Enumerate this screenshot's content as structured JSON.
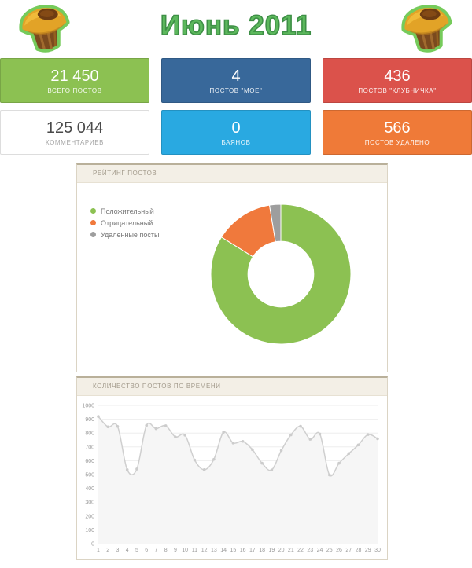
{
  "header": {
    "title": "Июнь 2011"
  },
  "stats": {
    "cards": [
      {
        "value": "21 450",
        "label": "ВСЕГО ПОСТОВ",
        "bg": "#8CC152",
        "fg": "#FFFFFF"
      },
      {
        "value": "4",
        "label": "ПОСТОВ \"МОЕ\"",
        "bg": "#38689A",
        "fg": "#FFFFFF"
      },
      {
        "value": "436",
        "label": "ПОСТОВ \"КЛУБНИЧКА\"",
        "bg": "#DB524B",
        "fg": "#FFFFFF"
      },
      {
        "value": "125 044",
        "label": "КОММЕНТАРИЕВ",
        "bg": "#FFFFFF",
        "fg": "#4A4A4A",
        "label_color": "#9E9E9E",
        "border": "#DDDDDD"
      },
      {
        "value": "0",
        "label": "БАЯНОВ",
        "bg": "#29A9E1",
        "fg": "#FFFFFF"
      },
      {
        "value": "566",
        "label": "ПОСТОВ УДАЛЕНО",
        "bg": "#EF7A38",
        "fg": "#FFFFFF"
      }
    ]
  },
  "icons": {
    "muffin": "muffin-icon"
  },
  "chart_data": [
    {
      "type": "pie",
      "title": "РЕЙТИНГ ПОСТОВ",
      "labels": [
        "Положительный",
        "Отрицательный",
        "Удаленные посты"
      ],
      "values": [
        83.9,
        13.5,
        2.6
      ],
      "unit": "percent",
      "colors": [
        "#8CC152",
        "#F0793C",
        "#9E9E9E"
      ],
      "donut_hole_ratio": 0.47,
      "legend_position": "left"
    },
    {
      "type": "line",
      "title": "КОЛИЧЕСТВО ПОСТОВ ПО ВРЕМЕНИ",
      "x": [
        1,
        2,
        3,
        4,
        5,
        6,
        7,
        8,
        9,
        10,
        11,
        12,
        13,
        14,
        15,
        16,
        17,
        18,
        19,
        20,
        21,
        22,
        23,
        24,
        25,
        26,
        27,
        28,
        29,
        30
      ],
      "values": [
        920,
        845,
        848,
        535,
        540,
        855,
        832,
        853,
        772,
        785,
        605,
        535,
        610,
        806,
        728,
        740,
        680,
        582,
        533,
        674,
        787,
        849,
        755,
        793,
        497,
        582,
        651,
        714,
        789,
        759
      ],
      "xlabel": "",
      "ylabel": "",
      "ylim": [
        0,
        1000
      ],
      "ytick_step": 100,
      "grid": true,
      "smooth": true,
      "line_color": "#CFCFCF",
      "area_fill": "#F6F6F6",
      "marker_color": "#CCCCCC",
      "grid_color": "#EEEEEE",
      "baseline_color": "#DDDDDD"
    }
  ]
}
